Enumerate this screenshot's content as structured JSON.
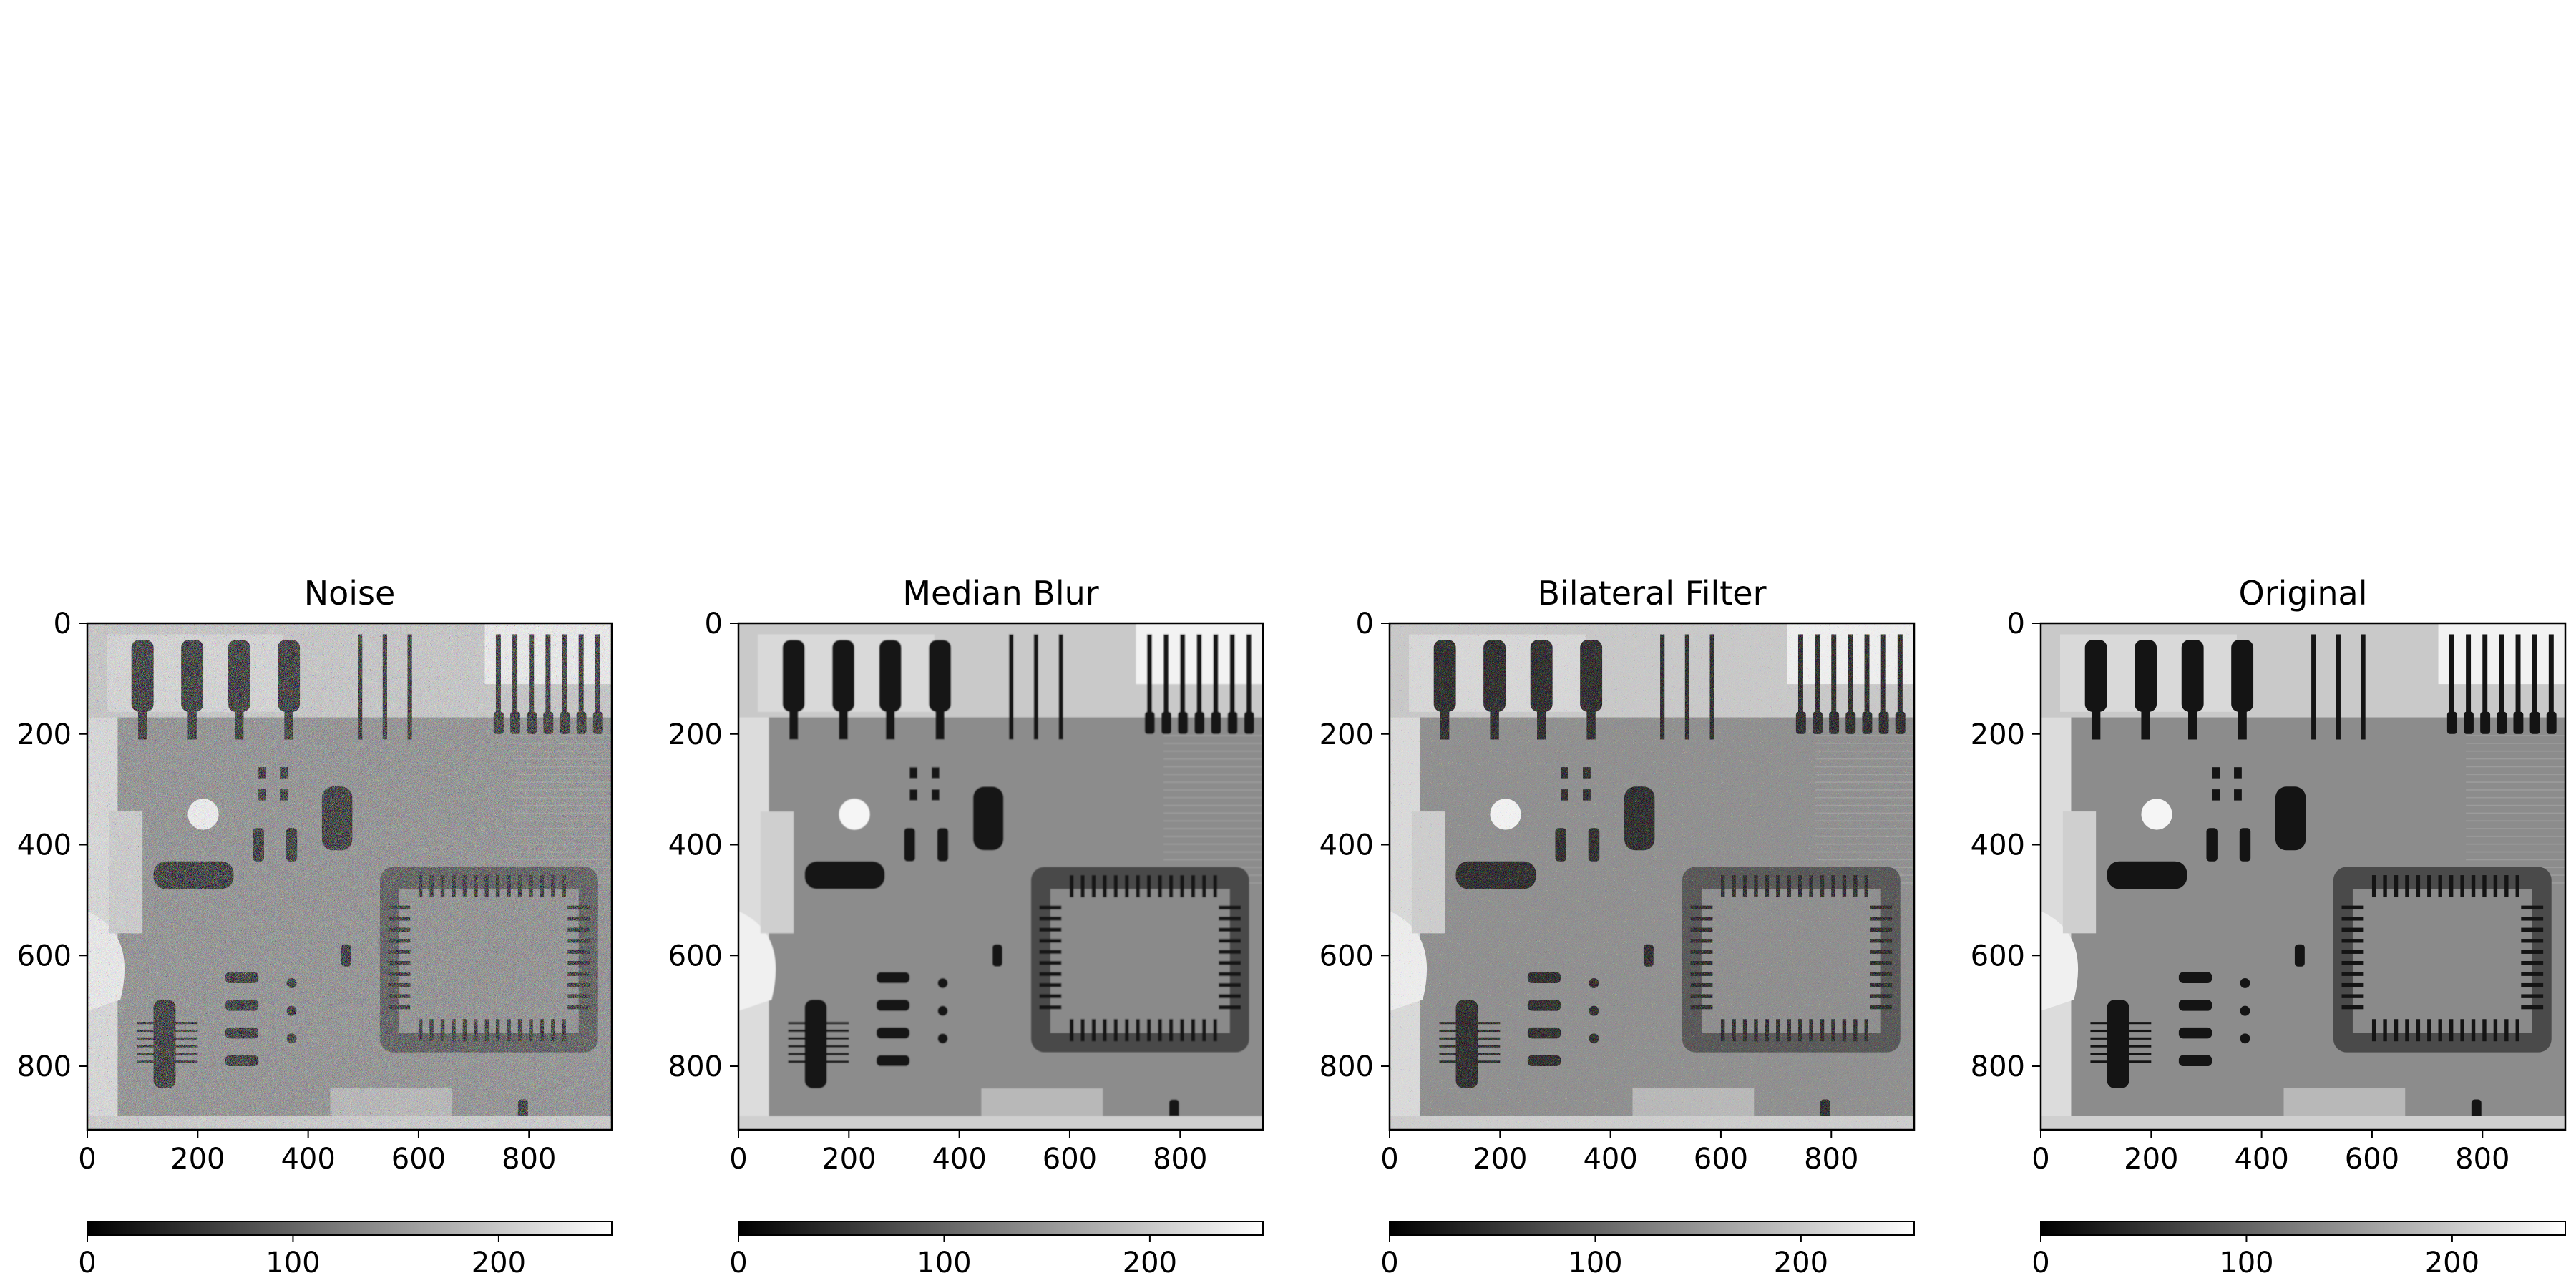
{
  "chart_data": [
    {
      "type": "heatmap",
      "title": "Noise",
      "image": "noisy grayscale X-ray of a circuit board with salt-and-pepper speckle",
      "x_ticks": [
        0,
        200,
        400,
        600,
        800
      ],
      "y_ticks": [
        0,
        200,
        400,
        600,
        800
      ],
      "xlim": [
        0,
        950
      ],
      "ylim": [
        915,
        0
      ],
      "colormap": "gray",
      "colorbar": {
        "orientation": "horizontal",
        "location": "bottom",
        "range": [
          0,
          255
        ],
        "ticks": [
          0,
          100,
          200
        ]
      },
      "noise": "heavy"
    },
    {
      "type": "heatmap",
      "title": "Median Blur",
      "image": "median-filtered grayscale X-ray of a circuit board",
      "x_ticks": [
        0,
        200,
        400,
        600,
        800
      ],
      "y_ticks": [
        0,
        200,
        400,
        600,
        800
      ],
      "xlim": [
        0,
        950
      ],
      "ylim": [
        915,
        0
      ],
      "colormap": "gray",
      "colorbar": {
        "orientation": "horizontal",
        "location": "bottom",
        "range": [
          0,
          255
        ],
        "ticks": [
          0,
          100,
          200
        ]
      },
      "noise": "none"
    },
    {
      "type": "heatmap",
      "title": "Bilateral Filter",
      "image": "bilateral-filtered grayscale X-ray of a circuit board, residual speckle",
      "x_ticks": [
        0,
        200,
        400,
        600,
        800
      ],
      "y_ticks": [
        0,
        200,
        400,
        600,
        800
      ],
      "xlim": [
        0,
        950
      ],
      "ylim": [
        915,
        0
      ],
      "colormap": "gray",
      "colorbar": {
        "orientation": "horizontal",
        "location": "bottom",
        "range": [
          0,
          255
        ],
        "ticks": [
          0,
          100,
          200
        ]
      },
      "noise": "moderate"
    },
    {
      "type": "heatmap",
      "title": "Original",
      "image": "clean grayscale X-ray of a circuit board",
      "x_ticks": [
        0,
        200,
        400,
        600,
        800
      ],
      "y_ticks": [
        0,
        200,
        400,
        600,
        800
      ],
      "xlim": [
        0,
        950
      ],
      "ylim": [
        915,
        0
      ],
      "colormap": "gray",
      "colorbar": {
        "orientation": "horizontal",
        "location": "bottom",
        "range": [
          0,
          255
        ],
        "ticks": [
          0,
          100,
          200
        ]
      },
      "noise": "none"
    }
  ],
  "colors": {
    "background": "#ffffff",
    "axes": "#000000",
    "board": "#8c8c8c",
    "dark": "#141414",
    "light": "#e6e6e6"
  }
}
